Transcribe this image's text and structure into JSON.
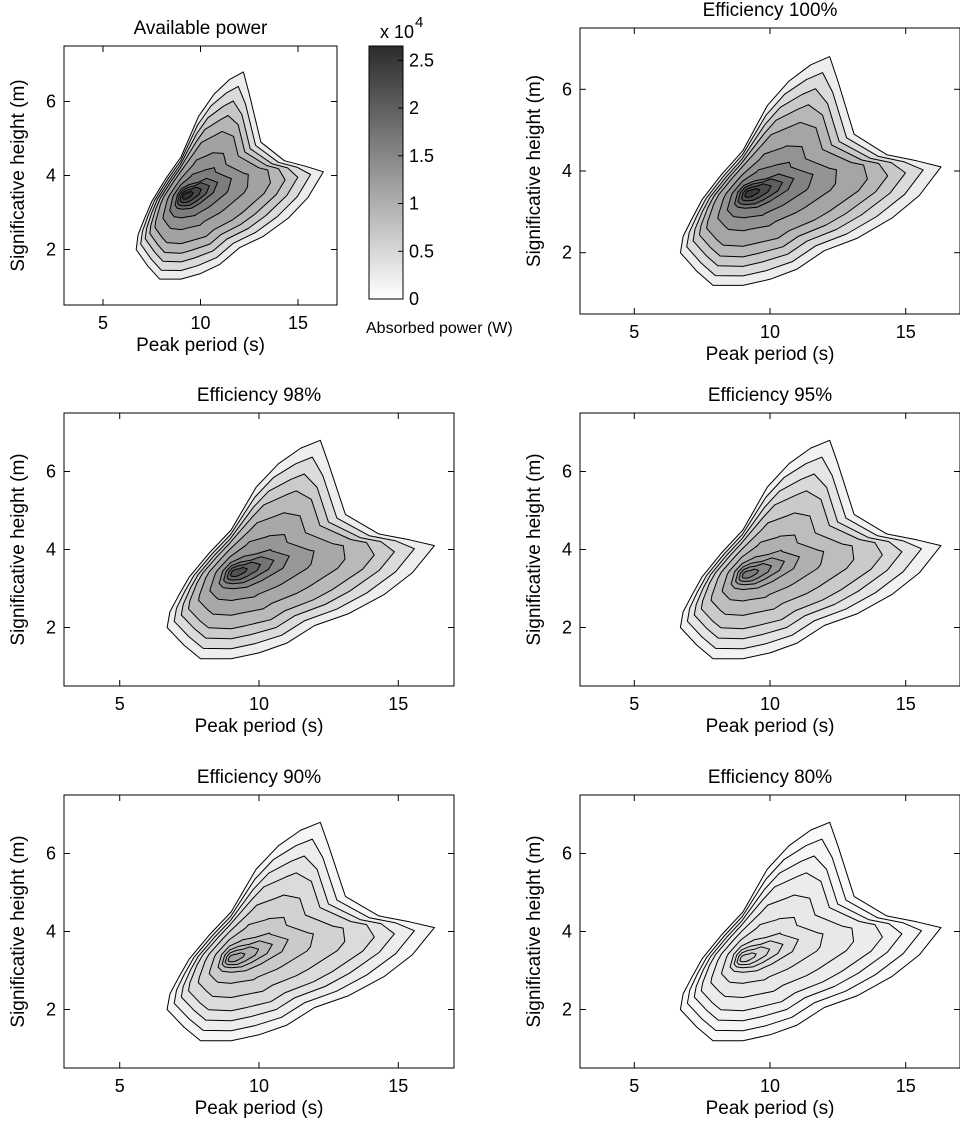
{
  "figure": {
    "colorbar": {
      "exponent_base": "x 10",
      "exponent_power": "4",
      "label": "Absorbed power (W)",
      "range": [
        0,
        26500
      ],
      "ticks": [
        {
          "value": 0,
          "label": "0"
        },
        {
          "value": 5000,
          "label": "0.5"
        },
        {
          "value": 10000,
          "label": "1"
        },
        {
          "value": 15000,
          "label": "1.5"
        },
        {
          "value": 20000,
          "label": "2"
        },
        {
          "value": 25000,
          "label": "2.5"
        }
      ],
      "colors": {
        "low": "#ffffff",
        "high": "#2b2b2b",
        "line": "#000000"
      }
    }
  },
  "chart_data": [
    {
      "type": "contour",
      "title": "Available power",
      "xlabel": "Peak period (s)",
      "ylabel": "Significative height (m)",
      "xlim": [
        3,
        17
      ],
      "ylim": [
        0.5,
        7.5
      ],
      "xticks": [
        {
          "value": 5,
          "label": "5"
        },
        {
          "value": 10,
          "label": "10"
        },
        {
          "value": 15,
          "label": "15"
        }
      ],
      "yticks": [
        {
          "value": 2,
          "label": "2"
        },
        {
          "value": 4,
          "label": "4"
        },
        {
          "value": 6,
          "label": "6"
        }
      ],
      "levels": 11,
      "peak": [
        9.2,
        3.45
      ],
      "peak_fraction": 0.96
    },
    {
      "type": "contour",
      "title": "Efficiency 100%",
      "xlabel": "Peak period (s)",
      "ylabel": "Significative height (m)",
      "xlim": [
        3,
        17
      ],
      "ylim": [
        0.5,
        7.5
      ],
      "xticks": [
        {
          "value": 5,
          "label": "5"
        },
        {
          "value": 10,
          "label": "10"
        },
        {
          "value": 15,
          "label": "15"
        }
      ],
      "yticks": [
        {
          "value": 2,
          "label": "2"
        },
        {
          "value": 4,
          "label": "4"
        },
        {
          "value": 6,
          "label": "6"
        }
      ],
      "levels": 11,
      "peak": [
        9.2,
        3.45
      ],
      "peak_fraction": 0.93
    },
    {
      "type": "contour",
      "title": "Efficiency 98%",
      "xlabel": "Peak period (s)",
      "ylabel": "Significative height (m)",
      "xlim": [
        3,
        17
      ],
      "ylim": [
        0.5,
        7.5
      ],
      "xticks": [
        {
          "value": 5,
          "label": "5"
        },
        {
          "value": 10,
          "label": "10"
        },
        {
          "value": 15,
          "label": "15"
        }
      ],
      "yticks": [
        {
          "value": 2,
          "label": "2"
        },
        {
          "value": 4,
          "label": "4"
        },
        {
          "value": 6,
          "label": "6"
        }
      ],
      "levels": 10,
      "peak": [
        9.1,
        3.4
      ],
      "peak_fraction": 0.82
    },
    {
      "type": "contour",
      "title": "Efficiency 95%",
      "xlabel": "Peak period (s)",
      "ylabel": "Significative height (m)",
      "xlim": [
        3,
        17
      ],
      "ylim": [
        0.5,
        7.5
      ],
      "xticks": [
        {
          "value": 5,
          "label": "5"
        },
        {
          "value": 10,
          "label": "10"
        },
        {
          "value": 15,
          "label": "15"
        }
      ],
      "yticks": [
        {
          "value": 2,
          "label": "2"
        },
        {
          "value": 4,
          "label": "4"
        },
        {
          "value": 6,
          "label": "6"
        }
      ],
      "levels": 10,
      "peak": [
        9.1,
        3.35
      ],
      "peak_fraction": 0.62
    },
    {
      "type": "contour",
      "title": "Efficiency 90%",
      "xlabel": "Peak period (s)",
      "ylabel": "Significative height (m)",
      "xlim": [
        3,
        17
      ],
      "ylim": [
        0.5,
        7.5
      ],
      "xticks": [
        {
          "value": 5,
          "label": "5"
        },
        {
          "value": 10,
          "label": "10"
        },
        {
          "value": 15,
          "label": "15"
        }
      ],
      "yticks": [
        {
          "value": 2,
          "label": "2"
        },
        {
          "value": 4,
          "label": "4"
        },
        {
          "value": 6,
          "label": "6"
        }
      ],
      "levels": 10,
      "peak": [
        9.0,
        3.3
      ],
      "peak_fraction": 0.42
    },
    {
      "type": "contour",
      "title": "Efficiency 80%",
      "xlabel": "Peak period (s)",
      "ylabel": "Significative height (m)",
      "xlim": [
        3,
        17
      ],
      "ylim": [
        0.5,
        7.5
      ],
      "xticks": [
        {
          "value": 5,
          "label": "5"
        },
        {
          "value": 10,
          "label": "10"
        },
        {
          "value": 15,
          "label": "15"
        }
      ],
      "yticks": [
        {
          "value": 2,
          "label": "2"
        },
        {
          "value": 4,
          "label": "4"
        },
        {
          "value": 6,
          "label": "6"
        }
      ],
      "levels": 10,
      "peak": [
        9.0,
        3.3
      ],
      "peak_fraction": 0.22
    }
  ]
}
